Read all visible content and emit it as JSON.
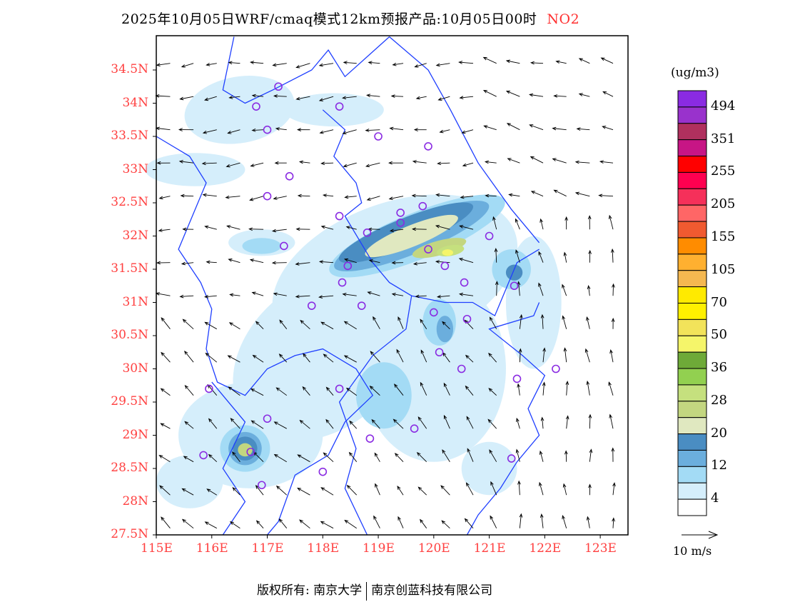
{
  "title": {
    "main": "2025年10月05日WRF/cmaq模式12km预报产品:10月05日00时",
    "species": "NO2"
  },
  "map": {
    "lon_range": [
      115,
      123.5
    ],
    "lat_range": [
      27.5,
      35.0
    ],
    "lat_labels": [
      "34.5N",
      "34N",
      "33.5N",
      "33N",
      "32.5N",
      "32N",
      "31.5N",
      "31N",
      "30.5N",
      "30N",
      "29.5N",
      "29N",
      "28.5N",
      "28N",
      "27.5N"
    ],
    "lat_values": [
      34.5,
      34,
      33.5,
      33,
      32.5,
      32,
      31.5,
      31,
      30.5,
      30,
      29.5,
      29,
      28.5,
      28,
      27.5
    ],
    "lon_labels": [
      "115E",
      "116E",
      "117E",
      "118E",
      "119E",
      "120E",
      "121E",
      "122E",
      "123E"
    ],
    "lon_values": [
      115,
      116,
      117,
      118,
      119,
      120,
      121,
      122,
      123
    ],
    "label_color": "#ff4040",
    "boundary_color": "#1f3fff",
    "station_color": "#8a2be2"
  },
  "colorbar": {
    "unit": "(ug/m3)",
    "colors": [
      "#8a2be2",
      "#9932cc",
      "#b0305e",
      "#c71585",
      "#ff0000",
      "#ff0050",
      "#f5305a",
      "#ff6666",
      "#f05a30",
      "#ff8c00",
      "#ffb030",
      "#f5b850",
      "#ffea00",
      "#fff000",
      "#f2e35a",
      "#f5f56a",
      "#6eaa38",
      "#92d050",
      "#c5e07e",
      "#c3d680",
      "#e0e8c0",
      "#4a8dc2",
      "#6baedd",
      "#a3dbf5",
      "#d5eefb",
      "#ffffff"
    ],
    "labels": [
      "494",
      "351",
      "255",
      "205",
      "155",
      "105",
      "70",
      "50",
      "36",
      "28",
      "20",
      "12",
      "4"
    ]
  },
  "vector_legend": "10 m/s",
  "footer": {
    "left": "版权所有: 南京大学",
    "right": "南京创蓝科技有限公司"
  }
}
